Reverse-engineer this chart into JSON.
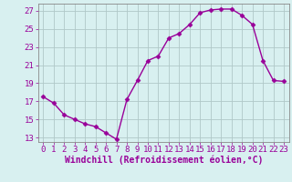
{
  "x": [
    0,
    1,
    2,
    3,
    4,
    5,
    6,
    7,
    8,
    9,
    10,
    11,
    12,
    13,
    14,
    15,
    16,
    17,
    18,
    19,
    20,
    21,
    22,
    23
  ],
  "y": [
    17.5,
    16.8,
    15.5,
    15.0,
    14.5,
    14.2,
    13.5,
    12.8,
    17.2,
    19.3,
    21.5,
    22.0,
    24.0,
    24.5,
    25.5,
    26.8,
    27.1,
    27.2,
    27.2,
    26.5,
    25.5,
    21.5,
    19.3,
    19.2
  ],
  "line_color": "#990099",
  "marker": "D",
  "marker_size": 2.5,
  "background_color": "#d8f0f0",
  "grid_color": "#b0c8c8",
  "xlabel": "Windchill (Refroidissement éolien,°C)",
  "ylabel": "",
  "xlim": [
    -0.5,
    23.5
  ],
  "ylim": [
    12.5,
    27.8
  ],
  "yticks": [
    13,
    15,
    17,
    19,
    21,
    23,
    25,
    27
  ],
  "xticks": [
    0,
    1,
    2,
    3,
    4,
    5,
    6,
    7,
    8,
    9,
    10,
    11,
    12,
    13,
    14,
    15,
    16,
    17,
    18,
    19,
    20,
    21,
    22,
    23
  ],
  "xlabel_fontsize": 7,
  "tick_fontsize": 6.5,
  "tick_color": "#990099",
  "axis_color": "#990099",
  "spine_color": "#888888"
}
